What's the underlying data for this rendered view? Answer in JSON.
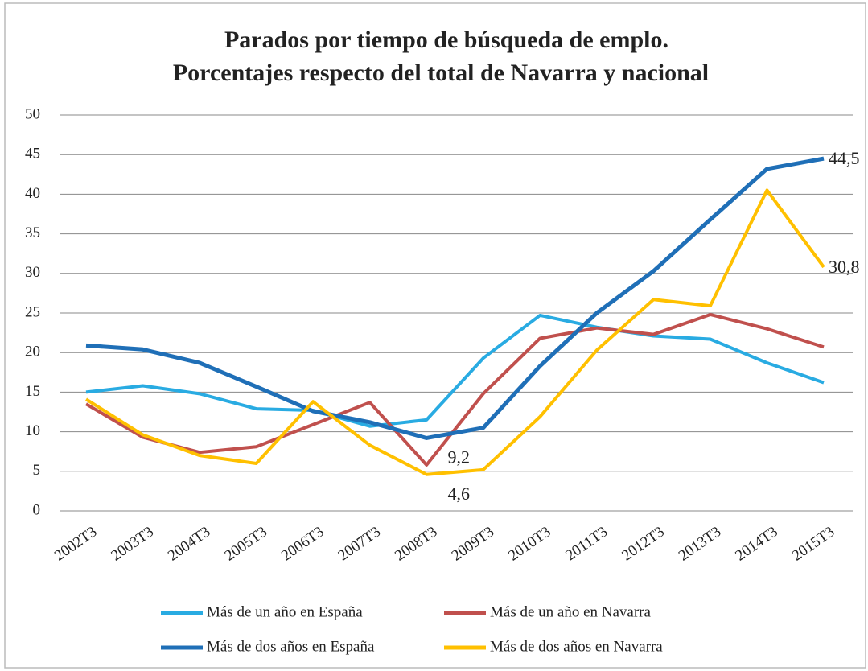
{
  "chart_data": {
    "type": "line",
    "title": [
      "Parados por tiempo de búsqueda de emplo.",
      "Porcentajes respecto del total de Navarra y nacional"
    ],
    "categories": [
      "2002T3",
      "2003T3",
      "2004T3",
      "2005T3",
      "2006T3",
      "2007T3",
      "2008T3",
      "2009T3",
      "2010T3",
      "2011T3",
      "2012T3",
      "2013T3",
      "2014T3",
      "2015T3"
    ],
    "series": [
      {
        "name": "Más de un año en España",
        "color": "#29abe2",
        "values": [
          15.0,
          15.8,
          14.8,
          12.9,
          12.7,
          10.7,
          11.5,
          19.3,
          24.7,
          23.2,
          22.1,
          21.7,
          18.7,
          16.2
        ]
      },
      {
        "name": "Más de un año en Navarra",
        "color": "#c0504d",
        "values": [
          13.5,
          9.3,
          7.4,
          8.1,
          10.9,
          13.7,
          5.8,
          14.8,
          21.8,
          23.1,
          22.3,
          24.8,
          23.0,
          20.7
        ]
      },
      {
        "name": "Más de dos años en España",
        "color": "#1f6fb7",
        "values": [
          20.9,
          20.4,
          18.7,
          15.7,
          12.6,
          11.2,
          9.2,
          10.5,
          18.3,
          25.0,
          30.3,
          36.8,
          43.2,
          44.5
        ],
        "value_labels": [
          null,
          null,
          null,
          null,
          null,
          null,
          "9,2",
          null,
          null,
          null,
          null,
          null,
          null,
          "44,5"
        ]
      },
      {
        "name": "Más de dos años en Navarra",
        "color": "#ffc000",
        "values": [
          14.1,
          9.6,
          7.0,
          6.0,
          13.8,
          8.3,
          4.6,
          5.2,
          11.9,
          20.3,
          26.7,
          25.9,
          40.5,
          30.8
        ],
        "value_labels": [
          null,
          null,
          null,
          null,
          null,
          null,
          "4,6",
          null,
          null,
          null,
          null,
          null,
          null,
          "30,8"
        ]
      }
    ],
    "ylim": [
      0,
      50
    ],
    "yticks": [
      0,
      5,
      10,
      15,
      20,
      25,
      30,
      35,
      40,
      45,
      50
    ],
    "grid": true,
    "legend": "bottom"
  }
}
